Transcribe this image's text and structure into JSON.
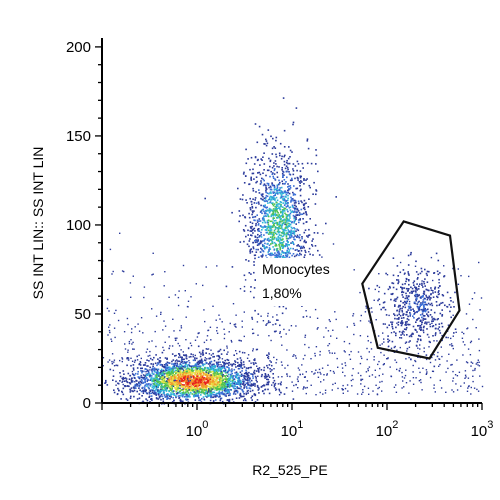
{
  "chart_data": {
    "type": "scatter",
    "subtype": "flow-cytometry density dot plot",
    "xlabel": "R2_525_PE",
    "ylabel": "SS INT LIN:: SS INT LIN",
    "x_scale": "log",
    "xlim": [
      0.1,
      1000
    ],
    "ylim": [
      0,
      205
    ],
    "x_ticks": [
      {
        "value": 1,
        "base": "10",
        "exp": "0"
      },
      {
        "value": 10,
        "base": "10",
        "exp": "1"
      },
      {
        "value": 100,
        "base": "10",
        "exp": "2"
      },
      {
        "value": 1000,
        "base": "10",
        "exp": "3"
      }
    ],
    "y_ticks": [
      {
        "value": 0,
        "label": "0"
      },
      {
        "value": 50,
        "label": "50"
      },
      {
        "value": 100,
        "label": "100"
      },
      {
        "value": 150,
        "label": "150"
      },
      {
        "value": 200,
        "label": "200"
      }
    ],
    "density_colors": [
      "#2b3a9b",
      "#3b6fd6",
      "#2fb5d8",
      "#4fc14f",
      "#e7e44a",
      "#f39a2b",
      "#e8231d"
    ],
    "populations": [
      {
        "center_x": 0.9,
        "center_y": 13,
        "spread_log_x": 0.33,
        "spread_y": 6,
        "relative_density": 1.0
      },
      {
        "center_x": 7,
        "center_y": 100,
        "spread_log_x": 0.16,
        "spread_y": 20,
        "relative_density": 0.55
      },
      {
        "center_x": 200,
        "center_y": 55,
        "spread_log_x": 0.17,
        "spread_y": 11,
        "relative_density": 0.18
      }
    ],
    "gate": {
      "name": "Monocytes",
      "percent": "1,80%",
      "vertices": [
        [
          55,
          67
        ],
        [
          150,
          102
        ],
        [
          460,
          94
        ],
        [
          580,
          52
        ],
        [
          280,
          25
        ],
        [
          80,
          31
        ]
      ]
    }
  }
}
